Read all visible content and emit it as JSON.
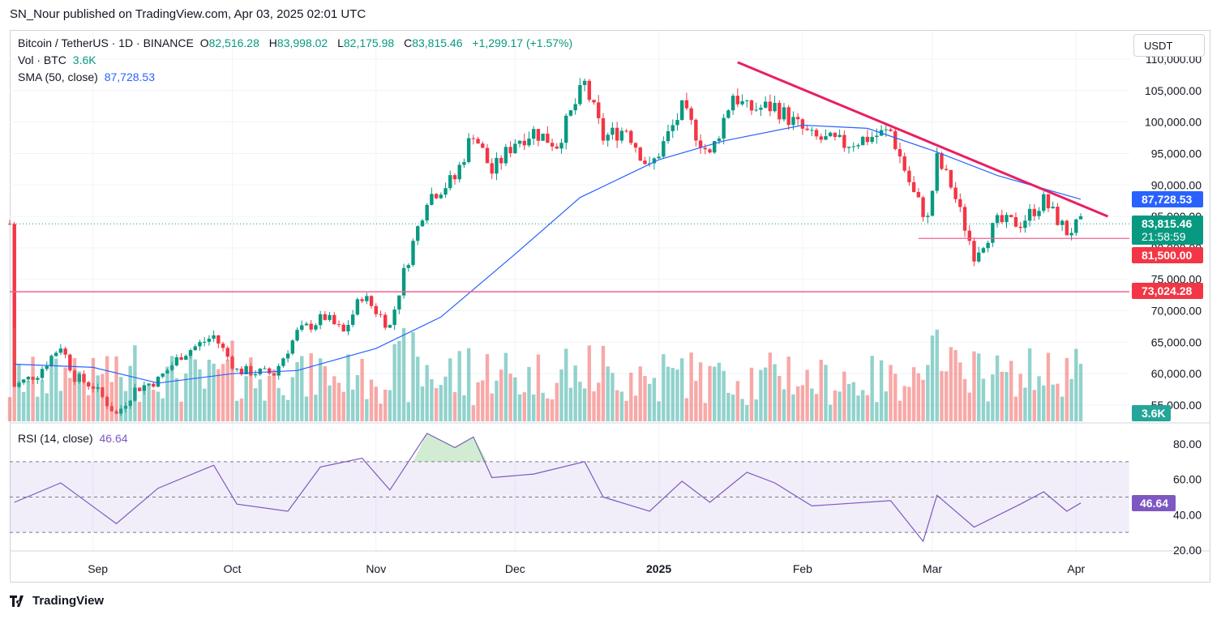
{
  "header": {
    "publisher": "SN_Nour published on TradingView.com, Apr 03, 2025 02:01 UTC"
  },
  "legend": {
    "symbol": "Bitcoin / TetherUS · 1D · BINANCE",
    "open_label": "O",
    "open": "82,516.28",
    "high_label": "H",
    "high": "83,998.02",
    "low_label": "L",
    "low": "82,175.98",
    "close_label": "C",
    "close": "83,815.46",
    "change": "+1,299.17 (+1.57%)",
    "vol_label": "Vol · BTC",
    "vol": "3.6K",
    "sma_label": "SMA (50, close)",
    "sma": "87,728.53",
    "rsi_label": "RSI (14, close)",
    "rsi": "46.64"
  },
  "currency": "USDT",
  "footer": {
    "brand": "TradingView"
  },
  "colors": {
    "up": "#089981",
    "down": "#f23645",
    "sma": "#2962ff",
    "rsi": "#7e57c2",
    "trend": "#e91e63",
    "level": "#f23645"
  },
  "chart_data": [
    {
      "type": "candlestick",
      "title": "Bitcoin / TetherUS · 1D · BINANCE",
      "y_axis_ticks": [
        "55,000.00",
        "60,000.00",
        "65,000.00",
        "70,000.00",
        "75,000.00",
        "80,000.00",
        "85,000.00",
        "90,000.00",
        "95,000.00",
        "100,000.00",
        "105,000.00",
        "110,000.00"
      ],
      "x_axis_ticks": [
        "Sep",
        "Oct",
        "Nov",
        "Dec",
        "2025",
        "Feb",
        "Mar",
        "Apr"
      ],
      "ylim": [
        50000,
        111000
      ],
      "series": [
        {
          "name": "BTCUSDT",
          "points": [
            {
              "date": "2024-08-15",
              "close": 58000
            },
            {
              "date": "2024-08-20",
              "close": 60000
            },
            {
              "date": "2024-08-25",
              "close": 64500
            },
            {
              "date": "2024-08-28",
              "close": 59500
            },
            {
              "date": "2024-09-01",
              "close": 58000
            },
            {
              "date": "2024-09-06",
              "close": 53500
            },
            {
              "date": "2024-09-10",
              "close": 57500
            },
            {
              "date": "2024-09-15",
              "close": 59000
            },
            {
              "date": "2024-09-20",
              "close": 63000
            },
            {
              "date": "2024-09-27",
              "close": 66000
            },
            {
              "date": "2024-10-02",
              "close": 60500
            },
            {
              "date": "2024-10-10",
              "close": 60000
            },
            {
              "date": "2024-10-15",
              "close": 66500
            },
            {
              "date": "2024-10-21",
              "close": 69000
            },
            {
              "date": "2024-10-25",
              "close": 66500
            },
            {
              "date": "2024-10-29",
              "close": 72500
            },
            {
              "date": "2024-11-04",
              "close": 67500
            },
            {
              "date": "2024-11-07",
              "close": 76000
            },
            {
              "date": "2024-11-12",
              "close": 88000
            },
            {
              "date": "2024-11-18",
              "close": 91000
            },
            {
              "date": "2024-11-22",
              "close": 98500
            },
            {
              "date": "2024-11-26",
              "close": 92000
            },
            {
              "date": "2024-12-01",
              "close": 97000
            },
            {
              "date": "2024-12-05",
              "close": 98500
            },
            {
              "date": "2024-12-10",
              "close": 96500
            },
            {
              "date": "2024-12-16",
              "close": 106000
            },
            {
              "date": "2024-12-20",
              "close": 97500
            },
            {
              "date": "2024-12-25",
              "close": 99000
            },
            {
              "date": "2024-12-30",
              "close": 92500
            },
            {
              "date": "2025-01-06",
              "close": 102000
            },
            {
              "date": "2025-01-12",
              "close": 94500
            },
            {
              "date": "2025-01-17",
              "close": 104500
            },
            {
              "date": "2025-01-20",
              "close": 102000
            },
            {
              "date": "2025-01-26",
              "close": 102500
            },
            {
              "date": "2025-02-03",
              "close": 97500
            },
            {
              "date": "2025-02-10",
              "close": 96500
            },
            {
              "date": "2025-02-20",
              "close": 98500
            },
            {
              "date": "2025-02-25",
              "close": 88500
            },
            {
              "date": "2025-02-28",
              "close": 84500
            },
            {
              "date": "2025-03-02",
              "close": 94000
            },
            {
              "date": "2025-03-05",
              "close": 90000
            },
            {
              "date": "2025-03-10",
              "close": 79000
            },
            {
              "date": "2025-03-15",
              "close": 84000
            },
            {
              "date": "2025-03-20",
              "close": 84000
            },
            {
              "date": "2025-03-25",
              "close": 87500
            },
            {
              "date": "2025-03-30",
              "close": 82500
            },
            {
              "date": "2025-04-02",
              "close": 83815.46
            }
          ]
        },
        {
          "name": "SMA (50, close)",
          "points": [
            {
              "date": "2024-08-15",
              "value": 61500
            },
            {
              "date": "2024-09-01",
              "value": 61000
            },
            {
              "date": "2024-09-15",
              "value": 58500
            },
            {
              "date": "2024-10-01",
              "value": 60000
            },
            {
              "date": "2024-10-15",
              "value": 60500
            },
            {
              "date": "2024-11-01",
              "value": 64000
            },
            {
              "date": "2024-11-15",
              "value": 69000
            },
            {
              "date": "2024-12-01",
              "value": 79000
            },
            {
              "date": "2024-12-15",
              "value": 88000
            },
            {
              "date": "2025-01-01",
              "value": 94000
            },
            {
              "date": "2025-01-15",
              "value": 97000
            },
            {
              "date": "2025-02-01",
              "value": 99500
            },
            {
              "date": "2025-02-15",
              "value": 99000
            },
            {
              "date": "2025-03-01",
              "value": 95500
            },
            {
              "date": "2025-03-15",
              "value": 91500
            },
            {
              "date": "2025-04-02",
              "value": 87728.53
            }
          ]
        }
      ],
      "price_labels": [
        {
          "value": "87,728.53",
          "color": "#2962ff"
        },
        {
          "value": "83,815.46",
          "sub": "21:58:59",
          "color": "#089981"
        },
        {
          "value": "81,500.00",
          "color": "#f23645"
        },
        {
          "value": "73,024.28",
          "color": "#f23645"
        },
        {
          "value": "3.6K",
          "color": "#26a69a"
        }
      ],
      "horizontal_levels": [
        73024.28,
        81500
      ],
      "trendline": {
        "from": {
          "date": "2025-01-18",
          "value": 109500
        },
        "to": {
          "date": "2025-04-04",
          "value": 85000
        }
      }
    },
    {
      "type": "line",
      "title": "RSI (14, close)",
      "y_axis_ticks": [
        "20.00",
        "40.00",
        "60.00",
        "80.00"
      ],
      "ylim": [
        12,
        88
      ],
      "band": [
        30,
        70
      ],
      "series": [
        {
          "name": "RSI (14, close)",
          "points": [
            {
              "date": "2024-08-15",
              "value": 47
            },
            {
              "date": "2024-08-25",
              "value": 58
            },
            {
              "date": "2024-09-06",
              "value": 35
            },
            {
              "date": "2024-09-15",
              "value": 55
            },
            {
              "date": "2024-09-27",
              "value": 68
            },
            {
              "date": "2024-10-02",
              "value": 46
            },
            {
              "date": "2024-10-13",
              "value": 42
            },
            {
              "date": "2024-10-20",
              "value": 67
            },
            {
              "date": "2024-10-29",
              "value": 72
            },
            {
              "date": "2024-11-04",
              "value": 54
            },
            {
              "date": "2024-11-12",
              "value": 86
            },
            {
              "date": "2024-11-18",
              "value": 78
            },
            {
              "date": "2024-11-22",
              "value": 84
            },
            {
              "date": "2024-11-26",
              "value": 61
            },
            {
              "date": "2024-12-05",
              "value": 63
            },
            {
              "date": "2024-12-16",
              "value": 70
            },
            {
              "date": "2024-12-20",
              "value": 50
            },
            {
              "date": "2024-12-30",
              "value": 42
            },
            {
              "date": "2025-01-06",
              "value": 59
            },
            {
              "date": "2025-01-12",
              "value": 47
            },
            {
              "date": "2025-01-20",
              "value": 64
            },
            {
              "date": "2025-01-26",
              "value": 58
            },
            {
              "date": "2025-02-03",
              "value": 45
            },
            {
              "date": "2025-02-20",
              "value": 48
            },
            {
              "date": "2025-02-27",
              "value": 25
            },
            {
              "date": "2025-03-02",
              "value": 51
            },
            {
              "date": "2025-03-10",
              "value": 33
            },
            {
              "date": "2025-03-20",
              "value": 46
            },
            {
              "date": "2025-03-25",
              "value": 53
            },
            {
              "date": "2025-03-30",
              "value": 42
            },
            {
              "date": "2025-04-02",
              "value": 46.64
            }
          ]
        }
      ],
      "label": {
        "value": "46.64",
        "color": "#7e57c2"
      }
    }
  ]
}
